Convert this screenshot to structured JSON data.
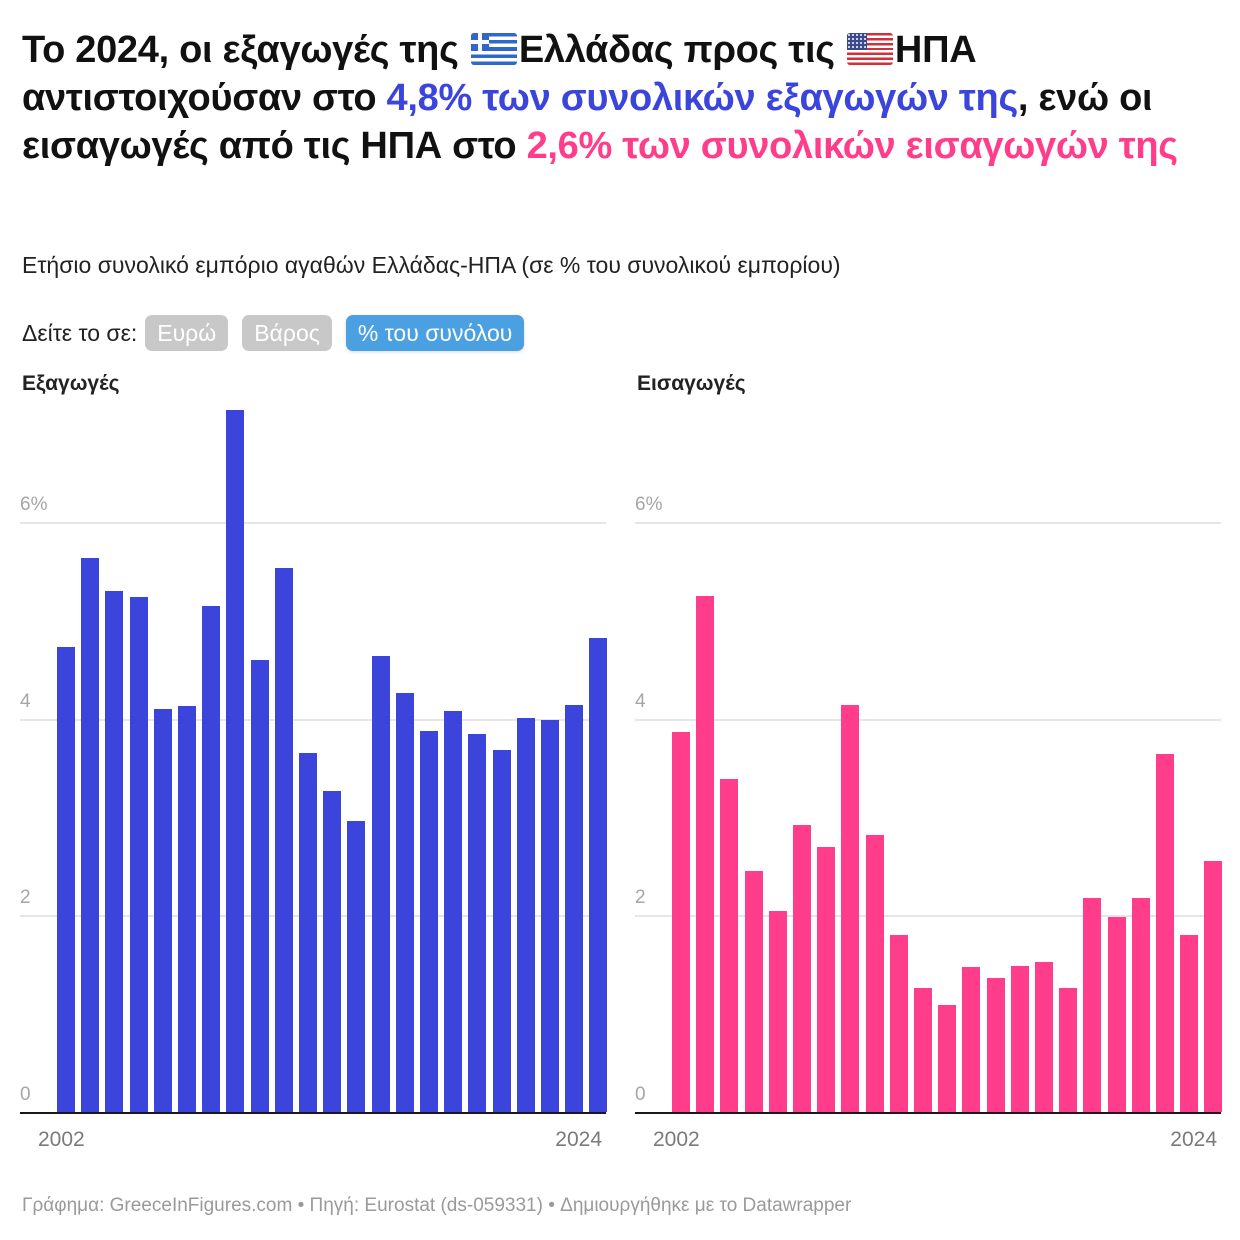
{
  "headline": {
    "part1": "Το 2024, οι εξαγωγές της ",
    "flag_greece": "greece-flag",
    "part2": "Ελλάδας προς τις ",
    "flag_usa": "usa-flag",
    "part3": "ΗΠΑ αντιστοιχούσαν στο ",
    "highlight_exports": "4,8% των συνολικών εξαγωγών της",
    "part4": ", ενώ οι εισαγωγές από τις ΗΠΑ στο ",
    "highlight_imports": "2,6% των συνολικών εισαγωγών της"
  },
  "subtitle": "Ετήσιο συνολικό εμπόριο αγαθών Ελλάδας-ΗΠΑ (σε % του συνολικού εμπορίου)",
  "view_toggle": {
    "label": "Δείτε το σε:",
    "options": [
      {
        "label": "Ευρώ",
        "active": false
      },
      {
        "label": "Βάρος",
        "active": false
      },
      {
        "label": "% του συνόλου",
        "active": true
      }
    ]
  },
  "colors": {
    "exports": "#3b45dc",
    "imports": "#ff3d8a",
    "toggle_active": "#4aa0e0",
    "toggle_inactive": "#c8c8c8"
  },
  "chart_data": [
    {
      "type": "bar",
      "title": "Εξαγωγές",
      "xlabel": "",
      "ylabel": "",
      "ylim": [
        0,
        7.2
      ],
      "yticks": [
        "0",
        "2",
        "4",
        "6%"
      ],
      "ytick_values": [
        0,
        2,
        4,
        6
      ],
      "xtick_labels": [
        "2002",
        "2024"
      ],
      "grid": true,
      "color": "#3b45dc",
      "categories": [
        "2002",
        "2003",
        "2004",
        "2005",
        "2006",
        "2007",
        "2008",
        "2009",
        "2010",
        "2011",
        "2012",
        "2013",
        "2014",
        "2015",
        "2016",
        "2017",
        "2018",
        "2019",
        "2020",
        "2021",
        "2022",
        "2023",
        "2024"
      ],
      "values": [
        4.73,
        5.64,
        5.3,
        5.24,
        4.1,
        4.13,
        5.15,
        7.14,
        4.6,
        5.53,
        3.65,
        3.27,
        2.96,
        4.64,
        4.26,
        3.88,
        4.08,
        3.85,
        3.68,
        4.01,
        3.99,
        4.14,
        4.82
      ]
    },
    {
      "type": "bar",
      "title": "Εισαγωγές",
      "xlabel": "",
      "ylabel": "",
      "ylim": [
        0,
        7.2
      ],
      "yticks": [
        "0",
        "2",
        "4",
        "6%"
      ],
      "ytick_values": [
        0,
        2,
        4,
        6
      ],
      "xtick_labels": [
        "2002",
        "2024"
      ],
      "grid": true,
      "color": "#ff3d8a",
      "categories": [
        "2002",
        "2003",
        "2004",
        "2005",
        "2006",
        "2007",
        "2008",
        "2009",
        "2010",
        "2011",
        "2012",
        "2013",
        "2014",
        "2015",
        "2016",
        "2017",
        "2018",
        "2019",
        "2020",
        "2021",
        "2022",
        "2023",
        "2024"
      ],
      "values": [
        3.87,
        5.25,
        3.39,
        2.45,
        2.04,
        2.92,
        2.7,
        4.14,
        2.82,
        1.8,
        1.26,
        1.09,
        1.48,
        1.36,
        1.49,
        1.53,
        1.26,
        2.18,
        1.98,
        2.18,
        3.64,
        1.8,
        2.55
      ]
    }
  ],
  "footer": "Γράφημα: GreeceInFigures.com • Πηγή: Eurostat (ds-059331) • Δημιουργήθηκε με το Datawrapper"
}
